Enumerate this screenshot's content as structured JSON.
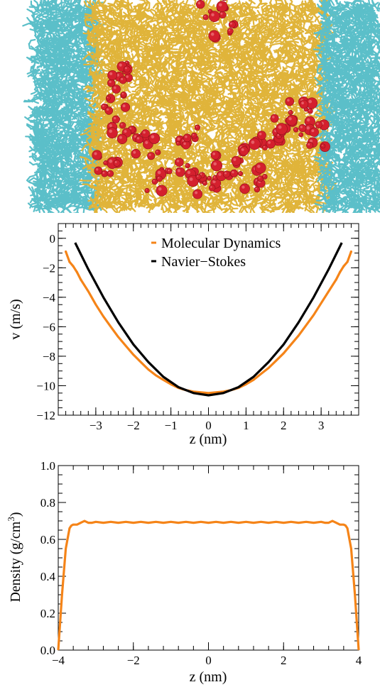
{
  "snapshot": {
    "colors": {
      "wall": "#5bbfc9",
      "liquid": "#e0b43a",
      "solute": "#d4202e"
    }
  },
  "chart_data": [
    {
      "type": "line",
      "xlabel": "z (nm)",
      "ylabel": "v (m/s)",
      "xlim": [
        -4,
        4
      ],
      "ylim": [
        -12,
        1
      ],
      "xticks": [
        -3,
        -2,
        -1,
        0,
        1,
        2,
        3
      ],
      "xtick_labels": [
        "−3",
        "−2",
        "−1",
        "0",
        "1",
        "2",
        "3"
      ],
      "yticks": [
        0,
        -2,
        -4,
        -6,
        -8,
        -10,
        -12
      ],
      "ytick_labels": [
        "0",
        "−2",
        "−4",
        "−6",
        "−8",
        "−10",
        "−12"
      ],
      "legend_position": "top-center",
      "grid": false,
      "series": [
        {
          "name": "Molecular Dynamics",
          "color": "#f58418",
          "x": [
            -3.8,
            -3.7,
            -3.6,
            -3.5,
            -3.4,
            -3.2,
            -3.0,
            -2.8,
            -2.6,
            -2.4,
            -2.2,
            -2.0,
            -1.8,
            -1.6,
            -1.4,
            -1.2,
            -1.0,
            -0.8,
            -0.6,
            -0.4,
            -0.2,
            0.0,
            0.2,
            0.4,
            0.6,
            0.8,
            1.0,
            1.2,
            1.4,
            1.6,
            1.8,
            2.0,
            2.2,
            2.4,
            2.6,
            2.8,
            3.0,
            3.2,
            3.4,
            3.5,
            3.6,
            3.7,
            3.8
          ],
          "y": [
            -0.9,
            -1.6,
            -1.9,
            -2.3,
            -2.8,
            -3.6,
            -4.5,
            -5.3,
            -6.0,
            -6.7,
            -7.3,
            -7.9,
            -8.4,
            -8.9,
            -9.3,
            -9.6,
            -9.9,
            -10.15,
            -10.3,
            -10.4,
            -10.45,
            -10.5,
            -10.45,
            -10.4,
            -10.3,
            -10.15,
            -9.9,
            -9.6,
            -9.2,
            -8.8,
            -8.3,
            -7.8,
            -7.2,
            -6.6,
            -5.9,
            -5.2,
            -4.4,
            -3.6,
            -2.8,
            -2.3,
            -1.9,
            -1.6,
            -0.9
          ]
        },
        {
          "name": "Navier−Stokes",
          "color": "#000000",
          "x": [
            -3.55,
            -3.2,
            -2.8,
            -2.4,
            -2.0,
            -1.6,
            -1.2,
            -0.8,
            -0.4,
            0.0,
            0.4,
            0.8,
            1.2,
            1.6,
            2.0,
            2.4,
            2.8,
            3.2,
            3.55
          ],
          "y": [
            -0.3,
            -2.1,
            -4.0,
            -5.7,
            -7.2,
            -8.4,
            -9.4,
            -10.1,
            -10.5,
            -10.65,
            -10.5,
            -10.1,
            -9.4,
            -8.4,
            -7.2,
            -5.7,
            -4.0,
            -2.1,
            -0.3
          ]
        }
      ]
    },
    {
      "type": "line",
      "xlabel": "z (nm)",
      "ylabel": "Density (g/cm",
      "ylabel_sup": "3",
      "ylabel_end": ")",
      "xlim": [
        -4,
        4
      ],
      "ylim": [
        0,
        1
      ],
      "xticks": [
        -4,
        -2,
        0,
        2,
        4
      ],
      "xtick_labels": [
        "−4",
        "−2",
        "0",
        "2",
        "4"
      ],
      "yticks": [
        0,
        0.2,
        0.4,
        0.6,
        0.8,
        1.0
      ],
      "ytick_labels": [
        "0.0",
        "0.2",
        "0.4",
        "0.6",
        "0.8",
        "1.0"
      ],
      "grid": false,
      "series": [
        {
          "color": "#f58418",
          "x": [
            -4.0,
            -3.9,
            -3.8,
            -3.7,
            -3.65,
            -3.6,
            -3.5,
            -3.4,
            -3.3,
            -3.2,
            -3.1,
            -3.0,
            -2.8,
            -2.6,
            -2.4,
            -2.2,
            -2.0,
            -1.8,
            -1.6,
            -1.4,
            -1.2,
            -1.0,
            -0.8,
            -0.6,
            -0.4,
            -0.2,
            0.0,
            0.2,
            0.4,
            0.6,
            0.8,
            1.0,
            1.2,
            1.4,
            1.6,
            1.8,
            2.0,
            2.2,
            2.4,
            2.6,
            2.8,
            3.0,
            3.1,
            3.2,
            3.3,
            3.4,
            3.5,
            3.6,
            3.65,
            3.7,
            3.8,
            3.9,
            4.0
          ],
          "y": [
            0.0,
            0.3,
            0.55,
            0.66,
            0.675,
            0.68,
            0.68,
            0.69,
            0.7,
            0.69,
            0.69,
            0.695,
            0.69,
            0.695,
            0.69,
            0.695,
            0.69,
            0.695,
            0.69,
            0.695,
            0.69,
            0.695,
            0.69,
            0.695,
            0.69,
            0.695,
            0.69,
            0.695,
            0.69,
            0.695,
            0.69,
            0.695,
            0.69,
            0.695,
            0.69,
            0.695,
            0.69,
            0.695,
            0.69,
            0.695,
            0.69,
            0.695,
            0.69,
            0.69,
            0.7,
            0.69,
            0.68,
            0.68,
            0.675,
            0.66,
            0.55,
            0.3,
            0.0
          ]
        }
      ]
    }
  ]
}
